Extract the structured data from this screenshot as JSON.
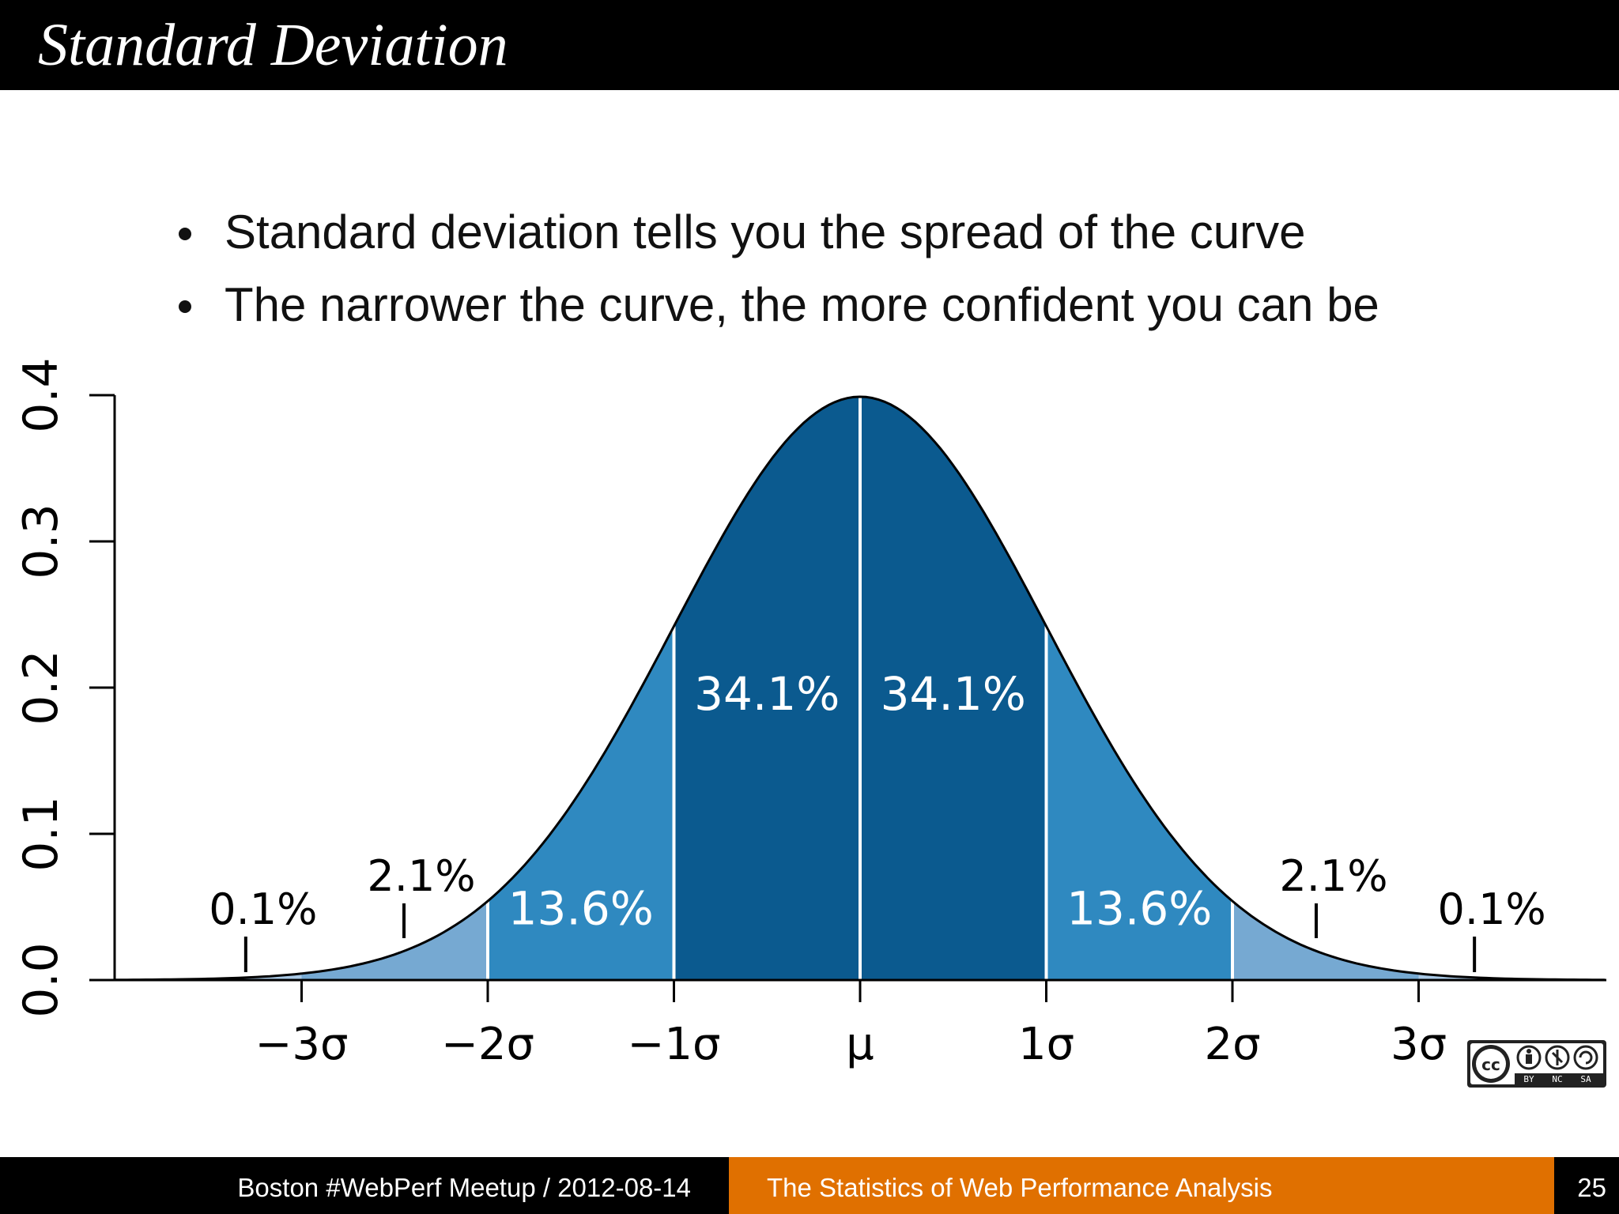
{
  "slide": {
    "title": "Standard Deviation",
    "bullets": [
      "Standard deviation tells you the spread of the curve",
      "The narrower the curve, the more confident you can be"
    ]
  },
  "footer": {
    "left": "Boston #WebPerf Meetup / 2012-08-14",
    "center": "The Statistics of Web Performance Analysis",
    "page": "25"
  },
  "badge": {
    "labels": [
      "BY",
      "NC",
      "SA"
    ],
    "mark": "cc"
  },
  "colors": {
    "title_bar": "#000000",
    "footer_accent": "#e07000",
    "band_1sigma": "#0b5a8f",
    "band_2sigma": "#2f89c0",
    "band_3sigma": "#76a9d2",
    "band_tail": "#a9c9e6"
  },
  "chart_data": {
    "type": "area",
    "distribution": "standard normal",
    "xlim": [
      -4,
      4
    ],
    "ylim": [
      0,
      0.4
    ],
    "y_ticks": [
      0.0,
      0.1,
      0.2,
      0.3,
      0.4
    ],
    "y_tick_labels": [
      "0.0",
      "0.1",
      "0.2",
      "0.3",
      "0.4"
    ],
    "x_ticks": [
      -3,
      -2,
      -1,
      0,
      1,
      2,
      3
    ],
    "x_tick_labels": [
      "−3σ",
      "−2σ",
      "−1σ",
      "μ",
      "1σ",
      "2σ",
      "3σ"
    ],
    "bands": [
      {
        "from": -4,
        "to": -3,
        "label": "0.1%",
        "value": 0.1,
        "label_x": -3.3,
        "inside": false
      },
      {
        "from": -3,
        "to": -2,
        "label": "2.1%",
        "value": 2.1,
        "label_x": -2.45,
        "inside": false
      },
      {
        "from": -2,
        "to": -1,
        "label": "13.6%",
        "value": 13.6,
        "label_x": -1.5,
        "inside": true
      },
      {
        "from": -1,
        "to": 0,
        "label": "34.1%",
        "value": 34.1,
        "label_x": -0.5,
        "inside": true
      },
      {
        "from": 0,
        "to": 1,
        "label": "34.1%",
        "value": 34.1,
        "label_x": 0.5,
        "inside": true
      },
      {
        "from": 1,
        "to": 2,
        "label": "13.6%",
        "value": 13.6,
        "label_x": 1.5,
        "inside": true
      },
      {
        "from": 2,
        "to": 3,
        "label": "2.1%",
        "value": 2.1,
        "label_x": 2.45,
        "inside": false
      },
      {
        "from": 3,
        "to": 4,
        "label": "0.1%",
        "value": 0.1,
        "label_x": 3.3,
        "inside": false
      }
    ]
  }
}
